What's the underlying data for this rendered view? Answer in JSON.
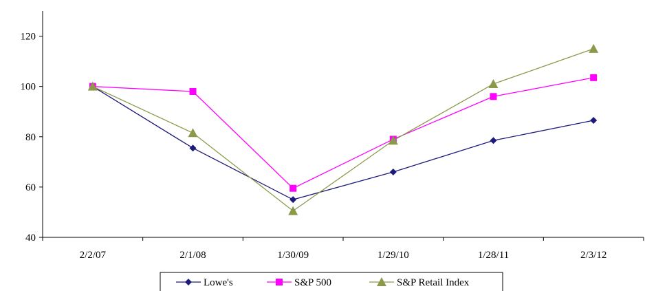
{
  "chart_data": {
    "type": "line",
    "categories": [
      "2/2/07",
      "2/1/08",
      "1/30/09",
      "1/29/10",
      "1/28/11",
      "2/3/12"
    ],
    "ylim": [
      40,
      130
    ],
    "yticks": [
      40,
      60,
      80,
      100,
      120
    ],
    "grid": false,
    "legend_position": "bottom",
    "series": [
      {
        "name": "Lowe's",
        "color": "#1c1a7a",
        "marker": "diamond",
        "values": [
          100,
          75.5,
          55,
          66,
          78.5,
          86.5
        ]
      },
      {
        "name": "S&P 500",
        "color": "#ff00ff",
        "marker": "square",
        "values": [
          100,
          98,
          59.5,
          79,
          96,
          103.5
        ]
      },
      {
        "name": "S&P Retail Index",
        "color": "#8a9a4a",
        "marker": "triangle",
        "values": [
          100,
          81.5,
          50.5,
          78.5,
          101,
          115
        ]
      }
    ]
  }
}
